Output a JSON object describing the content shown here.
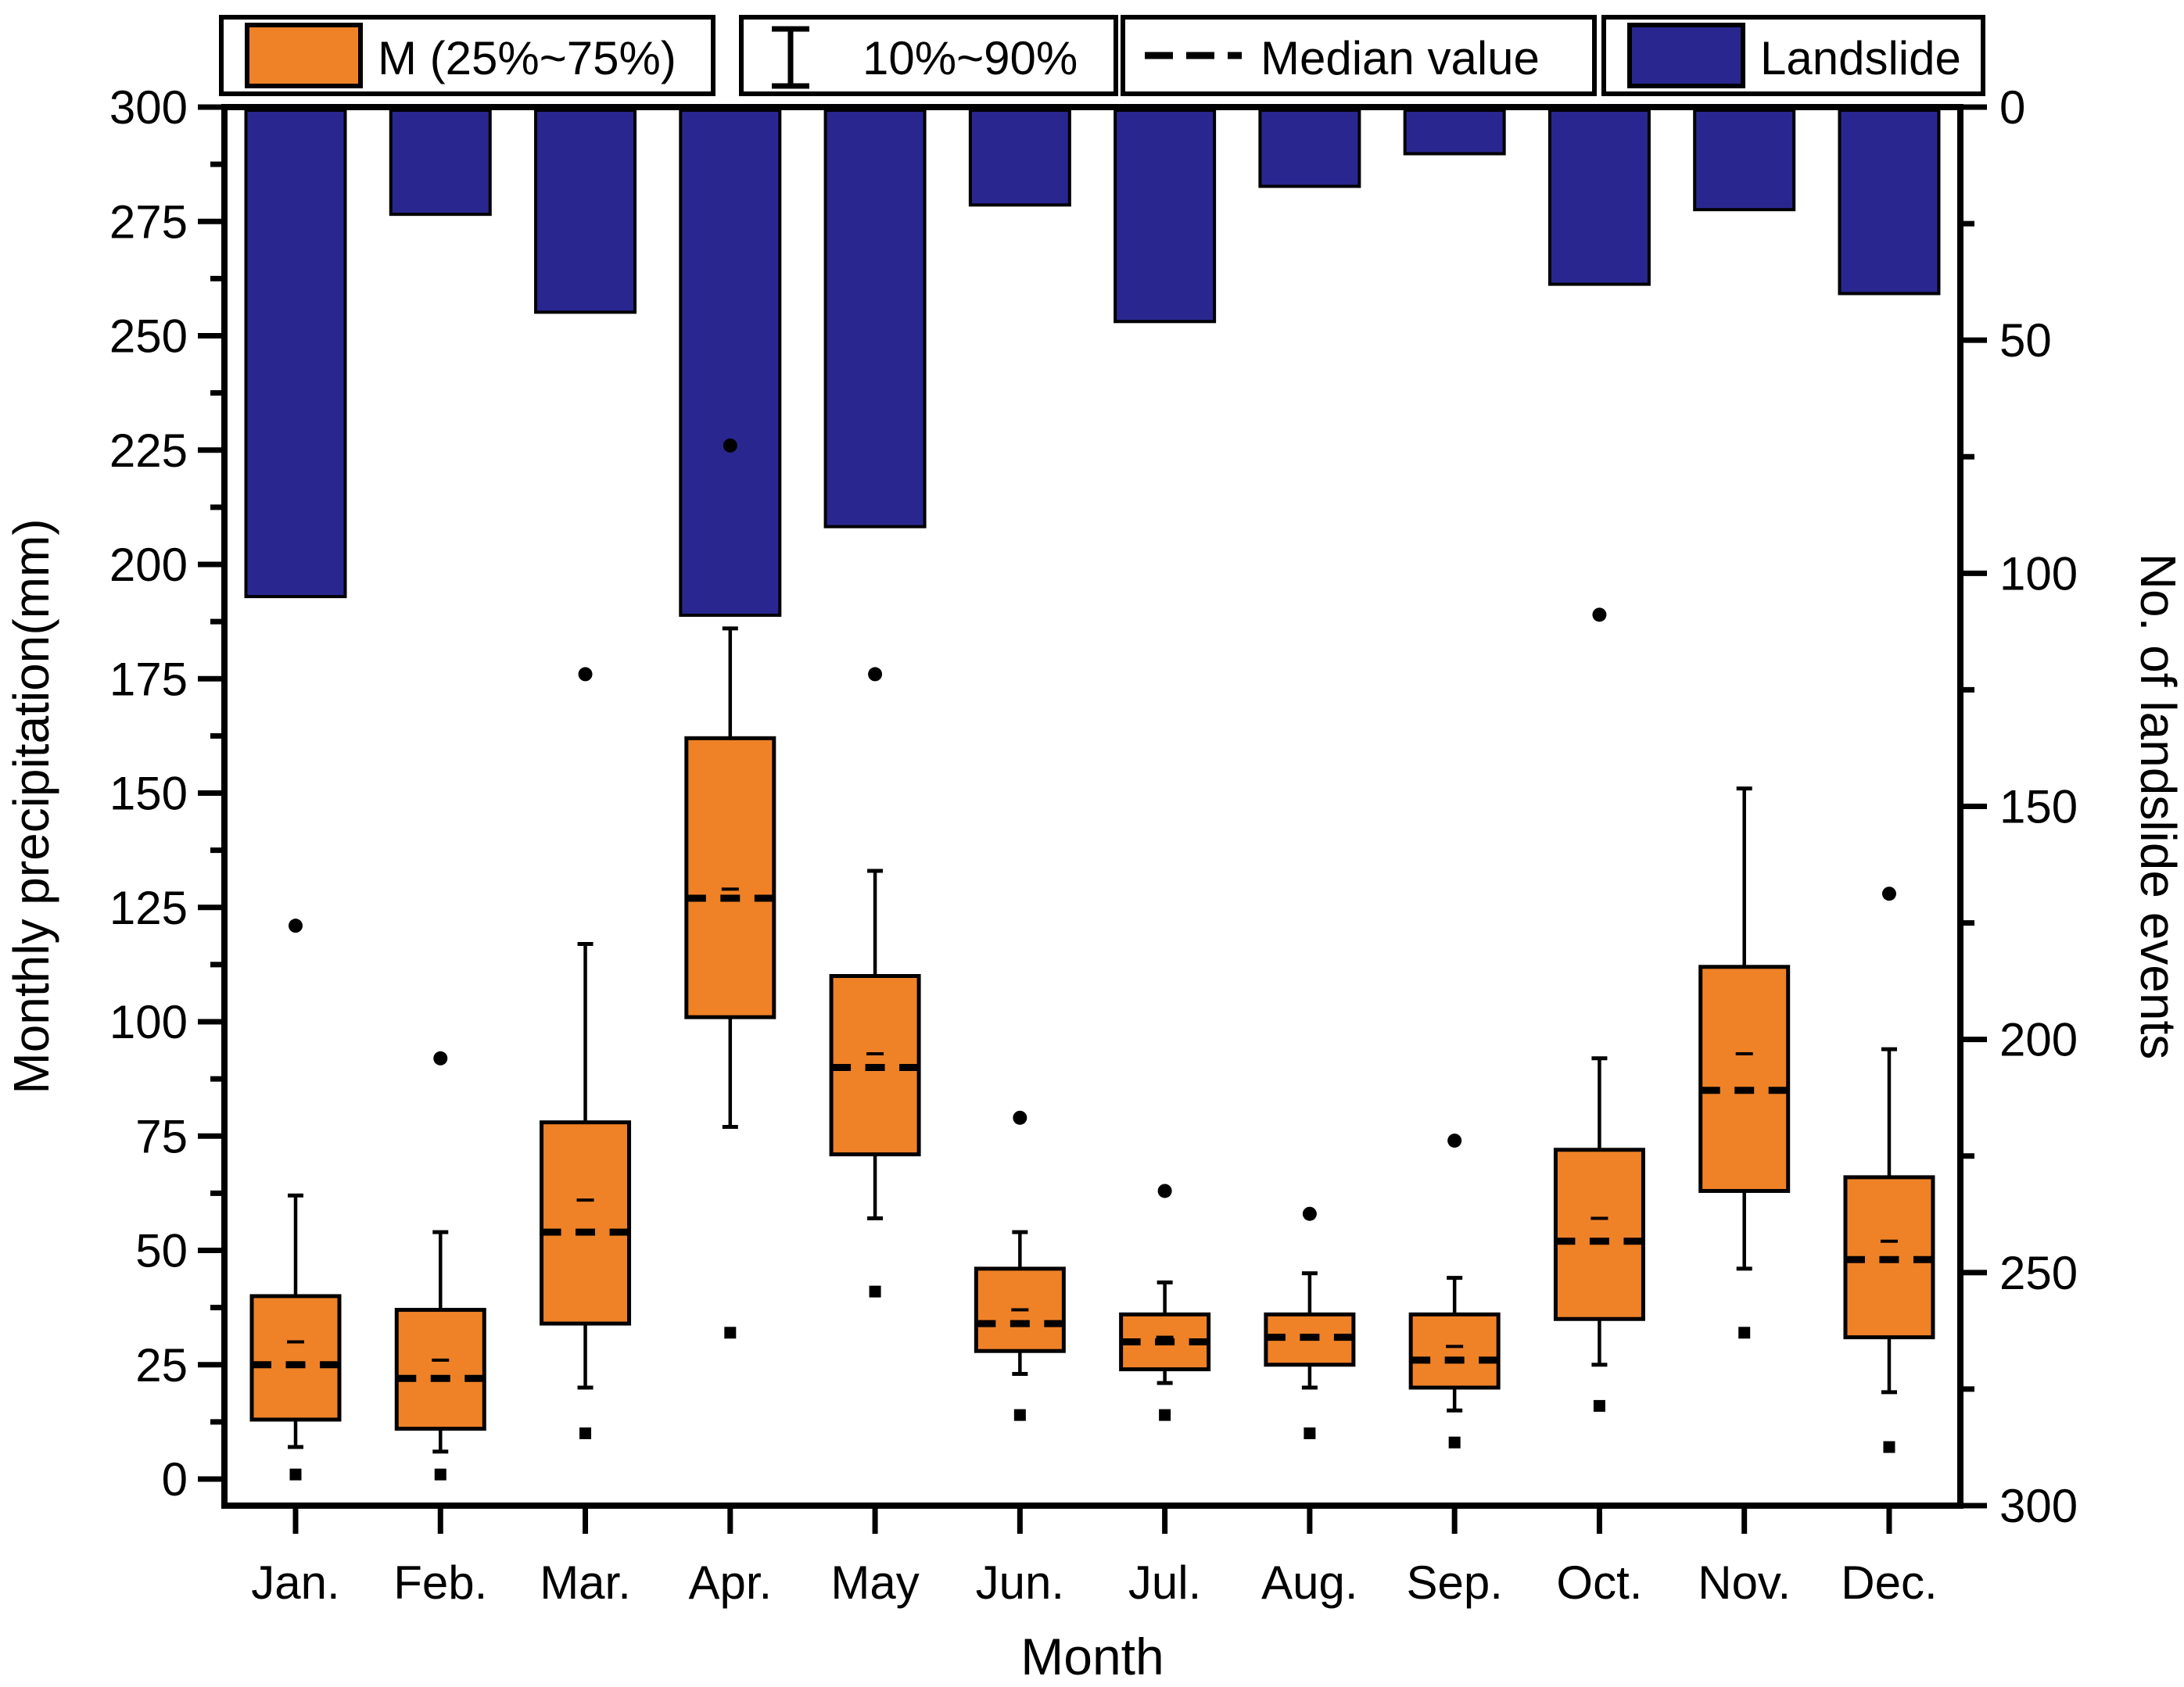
{
  "figure": {
    "background": "#ffffff",
    "frame_color": "#000000"
  },
  "legend": {
    "items": [
      {
        "label": "M (25%~75%)",
        "marker": "box-swatch",
        "color": "#EF8227"
      },
      {
        "label": "10%~90%",
        "marker": "error-bar",
        "color": "#000000"
      },
      {
        "label": "Median value",
        "marker": "dashed-line",
        "color": "#000000"
      },
      {
        "label": "Landslide",
        "marker": "box-swatch",
        "color": "#29278F"
      }
    ]
  },
  "chart_data": {
    "type": [
      "boxplot",
      "bar"
    ],
    "categories": [
      "Jan.",
      "Feb.",
      "Mar.",
      "Apr.",
      "May",
      "Jun.",
      "Jul.",
      "Aug.",
      "Sep.",
      "Oct.",
      "Nov.",
      "Dec."
    ],
    "x_axis": {
      "label": "Month"
    },
    "left_axis": {
      "label": "Monthly precipitation(mm)",
      "min": 0,
      "max": 300,
      "major_step": 25,
      "minor_step": 12.5,
      "tick_labels": [
        "0",
        "25",
        "50",
        "75",
        "100",
        "125",
        "150",
        "175",
        "200",
        "225",
        "250",
        "275",
        "300"
      ]
    },
    "right_axis": {
      "label": "No. of landslide events",
      "min": 0,
      "max": 300,
      "major_step": 50,
      "minor_step": 25,
      "inverted": true,
      "tick_labels": [
        "0",
        "50",
        "100",
        "150",
        "200",
        "250",
        "300"
      ]
    },
    "series": [
      {
        "name": "Monthly precipitation boxplot",
        "type": "boxplot",
        "axis": "left",
        "fill_color": "#EF8227",
        "line_color": "#000000",
        "stats": {
          "min_outlier": [
            1,
            1,
            10,
            32,
            41,
            14,
            14,
            10,
            8,
            16,
            32,
            7
          ],
          "p10": [
            7,
            6,
            20,
            77,
            57,
            23,
            21,
            20,
            15,
            25,
            46,
            19
          ],
          "q1": [
            13,
            11,
            34,
            101,
            71,
            28,
            24,
            25,
            20,
            35,
            63,
            31
          ],
          "median": [
            25,
            22,
            54,
            127,
            90,
            34,
            30,
            31,
            26,
            52,
            85,
            48
          ],
          "mean": [
            30,
            26,
            61,
            129,
            93,
            37,
            31,
            31,
            29,
            57,
            93,
            52
          ],
          "q3": [
            40,
            37,
            78,
            162,
            110,
            46,
            36,
            36,
            36,
            72,
            112,
            66
          ],
          "p90": [
            62,
            54,
            117,
            186,
            133,
            54,
            43,
            45,
            44,
            92,
            151,
            94
          ],
          "max_outlier": [
            121,
            92,
            176,
            226,
            176,
            79,
            63,
            58,
            74,
            189,
            null,
            128
          ]
        }
      },
      {
        "name": "Landslide",
        "type": "bar",
        "axis": "right",
        "fill_color": "#29278F",
        "line_color": "#000000",
        "values": [
          105,
          23,
          44,
          109,
          90,
          21,
          46,
          17,
          10,
          38,
          22,
          40
        ]
      }
    ]
  }
}
